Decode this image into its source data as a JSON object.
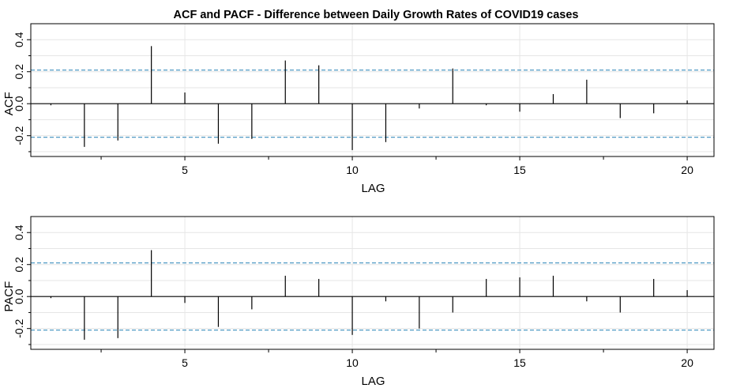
{
  "title": "ACF and PACF - Difference between Daily Growth Rates of COVID19 cases",
  "chart_data": [
    {
      "type": "bar",
      "ylabel": "ACF",
      "xlabel": "LAG",
      "xlim": [
        0.4,
        20.8
      ],
      "ylim": [
        -0.33,
        0.5
      ],
      "x_ticks": [
        5,
        10,
        15,
        20
      ],
      "x_tick_labels": [
        "5",
        "10",
        "15",
        "20"
      ],
      "y_ticks": [
        -0.2,
        0.0,
        0.2,
        0.4
      ],
      "y_tick_labels": [
        "-0.2",
        "0.0",
        "0.2",
        "0.4"
      ],
      "grid": true,
      "conf_bound": 0.21,
      "lags": [
        1,
        2,
        3,
        4,
        5,
        6,
        7,
        8,
        9,
        10,
        11,
        12,
        13,
        14,
        15,
        16,
        17,
        18,
        19,
        20
      ],
      "values": [
        -0.01,
        -0.27,
        -0.23,
        0.36,
        0.07,
        -0.25,
        -0.22,
        0.27,
        0.24,
        -0.29,
        -0.24,
        -0.03,
        0.22,
        -0.01,
        -0.05,
        0.06,
        0.15,
        -0.09,
        -0.06,
        0.02
      ]
    },
    {
      "type": "bar",
      "ylabel": "PACF",
      "xlabel": "LAG",
      "xlim": [
        0.4,
        20.8
      ],
      "ylim": [
        -0.33,
        0.5
      ],
      "x_ticks": [
        5,
        10,
        15,
        20
      ],
      "x_tick_labels": [
        "5",
        "10",
        "15",
        "20"
      ],
      "y_ticks": [
        -0.2,
        0.0,
        0.2,
        0.4
      ],
      "y_tick_labels": [
        "-0.2",
        "0.0",
        "0.2",
        "0.4"
      ],
      "grid": true,
      "conf_bound": 0.21,
      "lags": [
        1,
        2,
        3,
        4,
        5,
        6,
        7,
        8,
        9,
        10,
        11,
        12,
        13,
        14,
        15,
        16,
        17,
        18,
        19,
        20
      ],
      "values": [
        -0.01,
        -0.27,
        -0.26,
        0.29,
        -0.04,
        -0.19,
        -0.08,
        0.13,
        0.11,
        -0.24,
        -0.03,
        -0.2,
        -0.1,
        0.11,
        0.12,
        0.13,
        -0.03,
        -0.1,
        0.11,
        0.04
      ]
    }
  ],
  "colors": {
    "axis": "#000000",
    "grid": "#e6e6e6",
    "bar": "#000000",
    "conf_line": "#3d8fbf",
    "plot_bg": "#ffffff"
  }
}
